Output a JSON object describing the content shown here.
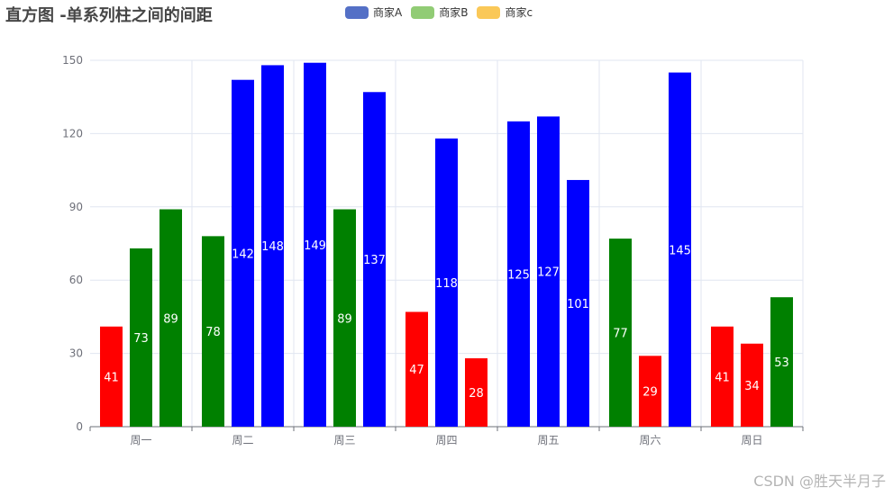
{
  "title": "直方图 -单系列柱之间的间距",
  "watermark": "CSDN @胜天半月子",
  "legend": [
    {
      "name": "商家A",
      "color": "#5470c6"
    },
    {
      "name": "商家B",
      "color": "#91cc75"
    },
    {
      "name": "商家c",
      "color": "#fac858"
    }
  ],
  "chart_data": {
    "type": "bar",
    "title": "直方图 -单系列柱之间的间距",
    "categories": [
      "周一",
      "周二",
      "周三",
      "周四",
      "周五",
      "周六",
      "周日"
    ],
    "ylim": [
      0,
      150
    ],
    "yticks": [
      0,
      30,
      60,
      90,
      120,
      150
    ],
    "grid": true,
    "legend_position": "top-center",
    "color_rule": {
      "lt50": "#ff0000",
      "50to100": "#008000",
      "gte100": "#0000ff"
    },
    "bar_colors": {
      "red": "#ff0000",
      "green": "#008000",
      "blue": "#0000ff"
    },
    "series": [
      {
        "name": "商家A",
        "values": [
          41,
          78,
          149,
          47,
          125,
          77,
          41
        ]
      },
      {
        "name": "商家B",
        "values": [
          73,
          142,
          89,
          118,
          127,
          29,
          34
        ]
      },
      {
        "name": "商家c",
        "values": [
          89,
          148,
          137,
          28,
          101,
          145,
          53
        ]
      }
    ]
  }
}
